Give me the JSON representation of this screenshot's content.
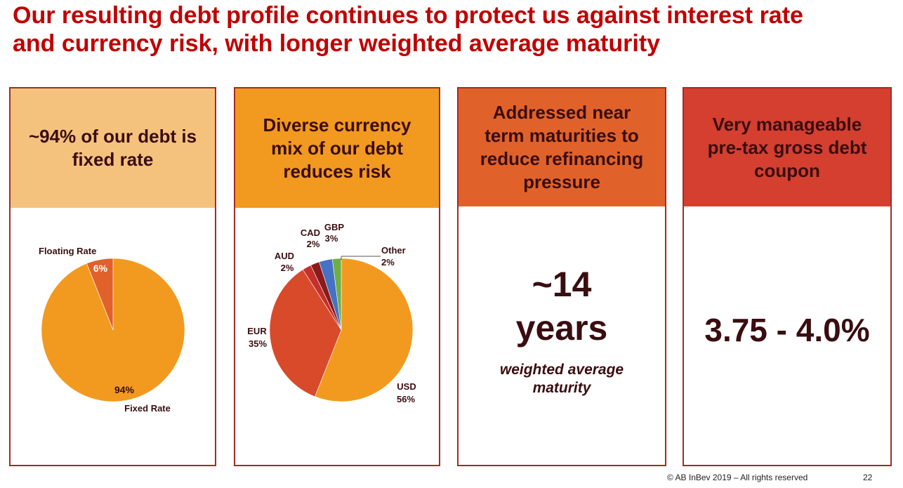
{
  "title": {
    "line1": "Our resulting debt profile continues to protect us against interest rate",
    "line2": "and currency risk, with longer weighted average maturity"
  },
  "colors": {
    "title": "#c00000",
    "border": "#a52a2a",
    "panel1_head": "#f5c27e",
    "panel2_head": "#f2991f",
    "panel3_head": "#e0622a",
    "panel4_head": "#d43f2f",
    "dark_text": "#3a0d10"
  },
  "panels": [
    {
      "head_lines": [
        "~94% of our debt is",
        "fixed rate"
      ]
    },
    {
      "head_lines": [
        "Diverse currency",
        "mix of our debt",
        "reduces risk"
      ]
    },
    {
      "head_lines": [
        "Addressed near",
        "term maturities to",
        "reduce refinancing",
        "pressure"
      ],
      "big_lines": [
        "~14",
        "years"
      ],
      "sub_lines": [
        "weighted average",
        "maturity"
      ]
    },
    {
      "head_lines": [
        "Very manageable",
        "pre-tax gross debt",
        "coupon"
      ],
      "big_value": "3.75 - 4.0%"
    }
  ],
  "chart_data": [
    {
      "type": "pie",
      "title": "~94% of our debt is fixed rate",
      "categories": [
        "Fixed Rate",
        "Floating Rate"
      ],
      "values": [
        94,
        6
      ],
      "value_labels": [
        "94%",
        "6%"
      ],
      "colors": [
        "#f29a1f",
        "#e0622a"
      ]
    },
    {
      "type": "pie",
      "title": "Diverse currency mix of our debt reduces risk",
      "categories": [
        "USD",
        "EUR",
        "AUD",
        "CAD",
        "GBP",
        "Other"
      ],
      "values": [
        56,
        35,
        2,
        2,
        3,
        2
      ],
      "value_labels": [
        "56%",
        "35%",
        "2%",
        "2%",
        "3%",
        "2%"
      ],
      "colors": [
        "#f29a1f",
        "#d84a2a",
        "#c4302b",
        "#8b1a1a",
        "#4472c4",
        "#70ad47"
      ]
    }
  ],
  "footer": {
    "copyright": "© AB InBev 2019 – All rights reserved",
    "page_number": "22"
  }
}
